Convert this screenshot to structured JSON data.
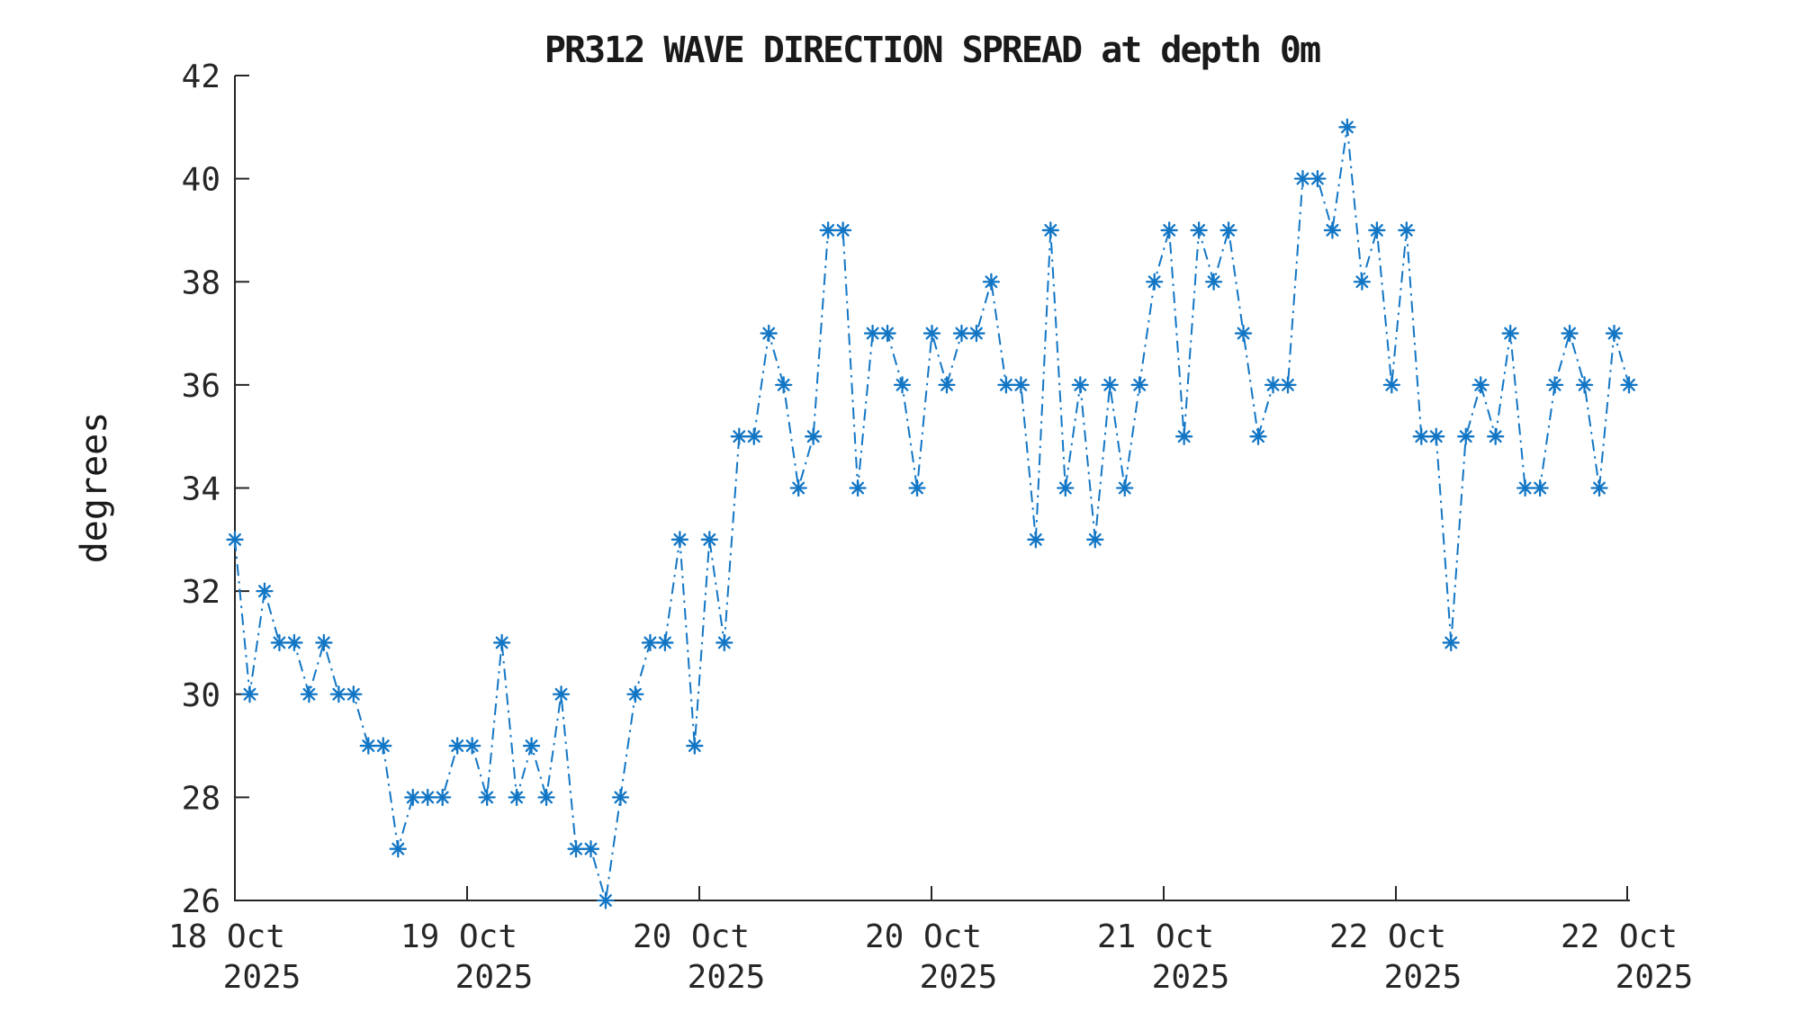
{
  "chart_data": {
    "type": "line",
    "title": "PR312 WAVE DIRECTION SPREAD at depth 0m",
    "ylabel": "degrees",
    "ylim": [
      26,
      42
    ],
    "yticks": [
      26,
      28,
      30,
      32,
      34,
      36,
      38,
      40,
      42
    ],
    "xticks": [
      {
        "day": "18 Oct",
        "year": "2025"
      },
      {
        "day": "19 Oct",
        "year": "2025"
      },
      {
        "day": "20 Oct",
        "year": "2025"
      },
      {
        "day": "20 Oct",
        "year": "2025"
      },
      {
        "day": "21 Oct",
        "year": "2025"
      },
      {
        "day": "22 Oct",
        "year": "2025"
      },
      {
        "day": "22 Oct",
        "year": "2025"
      }
    ],
    "grid": false,
    "legend": "none",
    "line_style": "dash-dot",
    "marker": "asterisk",
    "line_color": "#1276c5",
    "axis_color": "#262626",
    "values": [
      33,
      30,
      32,
      31,
      31,
      30,
      31,
      30,
      30,
      29,
      29,
      27,
      28,
      28,
      28,
      29,
      29,
      28,
      31,
      28,
      29,
      28,
      30,
      27,
      27,
      26,
      28,
      30,
      31,
      31,
      33,
      29,
      33,
      31,
      35,
      35,
      37,
      36,
      34,
      35,
      39,
      39,
      34,
      37,
      37,
      36,
      34,
      37,
      36,
      37,
      37,
      38,
      36,
      36,
      33,
      39,
      34,
      36,
      33,
      36,
      34,
      36,
      38,
      39,
      35,
      39,
      38,
      39,
      37,
      35,
      36,
      36,
      40,
      40,
      39,
      41,
      38,
      39,
      36,
      39,
      35,
      35,
      31,
      35,
      36,
      35,
      37,
      34,
      34,
      36,
      37,
      36,
      34,
      37,
      36
    ]
  }
}
